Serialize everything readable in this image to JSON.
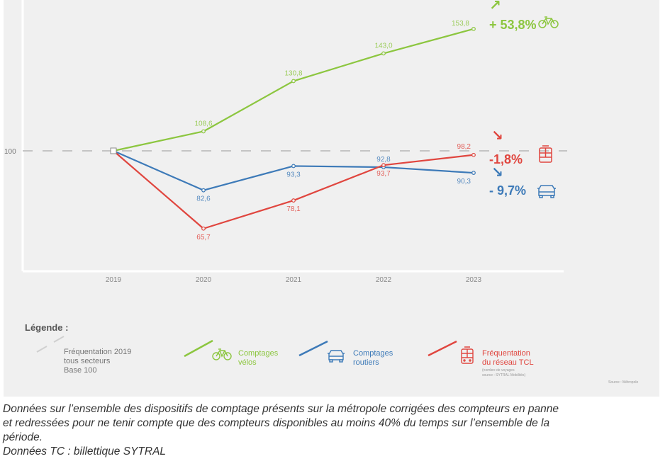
{
  "chart_data": {
    "type": "line",
    "title": "",
    "x": [
      "2019",
      "2020",
      "2021",
      "2022",
      "2023"
    ],
    "ylabel": "",
    "xlabel": "",
    "y_ticks": [
      "100"
    ],
    "ylim": [
      45,
      160
    ],
    "grid": false,
    "reference_line": {
      "value": 100,
      "style": "dashed",
      "label": "100"
    },
    "series": [
      {
        "name": "Comptages vélos",
        "color": "#8cc63f",
        "values": [
          100,
          108.6,
          130.8,
          143.0,
          153.8
        ],
        "labels": [
          "",
          "108,6",
          "130,8",
          "143,0",
          "153,8"
        ],
        "label_pos": [
          "",
          "above",
          "above",
          "above",
          "left"
        ],
        "change": "+ 53,8%",
        "arrow": "↗",
        "icon": "bicycle-icon"
      },
      {
        "name": "Comptages routiers",
        "color": "#3d7ab8",
        "values": [
          100,
          82.6,
          93.3,
          92.8,
          90.3
        ],
        "labels": [
          "",
          "82,6",
          "93,3",
          "92,8",
          "90,3"
        ],
        "label_pos": [
          "",
          "below",
          "below",
          "above",
          "below-left"
        ],
        "change": "- 9,7%",
        "arrow": "↘",
        "icon": "car-icon"
      },
      {
        "name": "Fréquentation du réseau TCL",
        "color": "#e0463f",
        "values": [
          100,
          65.7,
          78.1,
          93.7,
          98.2
        ],
        "labels": [
          "",
          "65,7",
          "78,1",
          "93,7",
          "98,2"
        ],
        "label_pos": [
          "",
          "below",
          "below",
          "below",
          "above-left"
        ],
        "change": "-1,8%",
        "arrow": "↘",
        "icon": "bus-icon"
      }
    ],
    "legend": {
      "title": "Légende :",
      "placement": "bottom",
      "items": [
        {
          "text": "Fréquentation 2019\ntous secteurs\nBase 100",
          "color": "#c8c8c8",
          "style": "dashed"
        },
        {
          "text": "Comptages\nvélos",
          "color": "#8cc63f",
          "icon": "bicycle-icon"
        },
        {
          "text": "Comptages\nroutiers",
          "color": "#3d7ab8",
          "icon": "car-icon"
        },
        {
          "text": "Fréquentation\ndu réseau TCL",
          "color": "#e0463f",
          "icon": "bus-icon",
          "note": "(nombre de voyages\nsource : SYTRAL Mobilités)"
        }
      ]
    },
    "source": "Source : Métropole"
  },
  "caption": "Données sur l’ensemble des dispositifs de comptage présents sur la métropole corrigées des compteurs en panne\net redressées pour ne tenir compte que des compteurs disponibles au moins 40% du temps sur l’ensemble de la\npériode.\nDonnées TC : billettique SYTRAL"
}
